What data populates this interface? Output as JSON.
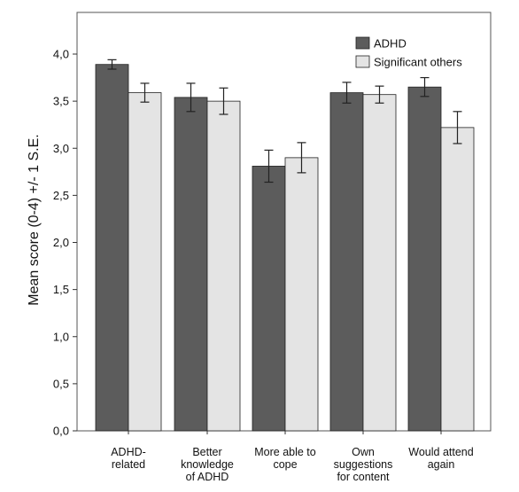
{
  "chart_data": {
    "type": "bar",
    "ylabel": "Mean score (0-4) +/- 1 S.E.",
    "xlabel": "",
    "ylim": [
      0,
      4.4
    ],
    "yticks": [
      "0,0",
      "0,5",
      "1,0",
      "1,5",
      "2,0",
      "2,5",
      "3,0",
      "3,5",
      "4,0"
    ],
    "categories": [
      [
        "ADHD-",
        "related"
      ],
      [
        "Better",
        "knowledge",
        "of ADHD"
      ],
      [
        "More able to",
        "cope"
      ],
      [
        "Own",
        "suggestions",
        "for content"
      ],
      [
        "Would attend",
        "again"
      ]
    ],
    "series": [
      {
        "name": "ADHD",
        "color": "#5c5c5c",
        "values": [
          3.89,
          3.54,
          2.81,
          3.59,
          3.65
        ],
        "se": [
          0.05,
          0.15,
          0.17,
          0.11,
          0.1
        ]
      },
      {
        "name": "Significant others",
        "color": "#e4e4e4",
        "values": [
          3.59,
          3.5,
          2.9,
          3.57,
          3.22
        ],
        "se": [
          0.1,
          0.14,
          0.16,
          0.09,
          0.17
        ]
      }
    ],
    "legend": "top-right",
    "grid": false
  }
}
